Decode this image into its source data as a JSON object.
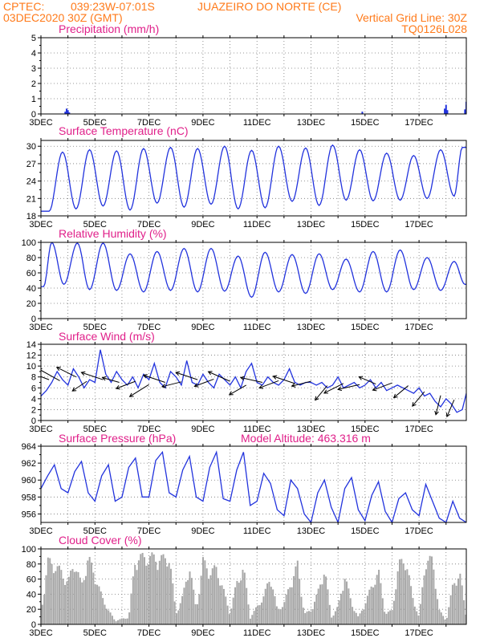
{
  "header": {
    "left_line1": "CPTEC:",
    "coords": "039:23W-07:01S",
    "location": "JUAZEIRO DO NORTE (CE)",
    "left_line2": "03DEC2020 30Z (GMT)",
    "grid_note": "Vertical Grid Line: 30Z",
    "run_code": "TQ0126L028"
  },
  "colors": {
    "header": "#ff7a1a",
    "panel_title": "#e0208a",
    "line": "#2233dd",
    "cloud": "#a8a8a8",
    "arrow": "#000000"
  },
  "x_axis": {
    "tick_labels": [
      "3DEC",
      "5DEC",
      "7DEC",
      "9DEC",
      "11DEC",
      "13DEC",
      "15DEC",
      "17DEC"
    ],
    "tick_days": [
      0,
      2,
      4,
      6,
      8,
      10,
      12,
      14
    ],
    "day_range": [
      0,
      15.75
    ]
  },
  "chart_data": [
    {
      "type": "bar",
      "title": "Precipitation (mm/h)",
      "ylim": [
        0,
        5
      ],
      "yticks": [
        0,
        1,
        2,
        3,
        4,
        5
      ],
      "x_unit": "days since 3DEC 03Z",
      "points": [
        [
          0.9,
          0.15
        ],
        [
          0.95,
          0.35
        ],
        [
          1.0,
          0.25
        ],
        [
          1.05,
          0.1
        ],
        [
          11.9,
          0.15
        ],
        [
          14.95,
          0.35
        ],
        [
          15.0,
          0.6
        ],
        [
          15.05,
          0.25
        ],
        [
          15.7,
          0.3
        ],
        [
          15.75,
          0.8
        ]
      ]
    },
    {
      "type": "line",
      "title": "Surface Temperature (nC)",
      "ylim": [
        18,
        31
      ],
      "yticks": [
        18,
        21,
        24,
        27,
        30
      ],
      "diurnal": {
        "x_min": [
          0.3,
          1.3,
          2.3,
          3.3,
          4.3,
          5.3,
          6.3,
          7.3,
          8.3,
          9.3,
          10.3,
          11.3,
          12.3,
          13.3,
          14.3,
          15.3
        ],
        "y_min": [
          18.8,
          19.2,
          19.7,
          19.0,
          20.2,
          19.5,
          20.0,
          19.2,
          19.4,
          20.5,
          19.8,
          20.7,
          20.6,
          20.7,
          21.0,
          21.4
        ],
        "x_max": [
          0.8,
          1.8,
          2.8,
          3.8,
          4.8,
          5.8,
          6.8,
          7.8,
          8.8,
          9.8,
          10.8,
          11.8,
          12.8,
          13.8,
          14.8,
          15.6
        ],
        "y_max": [
          29.0,
          29.4,
          29.2,
          29.6,
          29.8,
          29.6,
          30.0,
          29.3,
          30.0,
          29.7,
          30.2,
          29.4,
          28.8,
          28.4,
          29.4,
          29.8
        ]
      }
    },
    {
      "type": "line",
      "title": "Relative Humidity (%)",
      "ylim": [
        0,
        100
      ],
      "yticks": [
        0,
        20,
        40,
        60,
        80,
        100
      ],
      "diurnal": {
        "x_min": [
          0.1,
          0.85,
          1.8,
          2.8,
          3.8,
          4.8,
          5.8,
          6.8,
          7.8,
          8.8,
          9.8,
          10.8,
          11.8,
          12.8,
          13.8,
          14.8,
          15.7
        ],
        "y_min": [
          42,
          45,
          38,
          37,
          35,
          37,
          35,
          36,
          28,
          35,
          33,
          38,
          35,
          35,
          38,
          37,
          45
        ],
        "x_max": [
          0.4,
          1.35,
          2.3,
          3.3,
          4.3,
          5.3,
          6.3,
          7.3,
          8.3,
          9.3,
          10.3,
          11.3,
          12.3,
          13.3,
          14.3,
          15.3
        ],
        "y_max": [
          100,
          99,
          99,
          85,
          88,
          92,
          92,
          82,
          87,
          84,
          85,
          78,
          88,
          90,
          80,
          75
        ]
      }
    },
    {
      "type": "line",
      "title": "Surface Wind (m/s)",
      "ylim": [
        0,
        14
      ],
      "yticks": [
        0,
        2,
        4,
        6,
        8,
        10,
        12,
        14
      ],
      "series": [
        {
          "x": [
            0,
            0.2,
            0.4,
            0.6,
            0.8,
            1.0,
            1.2,
            1.4,
            1.6,
            1.8,
            2.0,
            2.2,
            2.4,
            2.6,
            2.8,
            3.0,
            3.2,
            3.4,
            3.6,
            3.8,
            4.0,
            4.2,
            4.4,
            4.6,
            4.8,
            5.0,
            5.2,
            5.4,
            5.6,
            5.8,
            6.0,
            6.2,
            6.4,
            6.6,
            6.8,
            7.0,
            7.2,
            7.4,
            7.6,
            7.8,
            8.0,
            8.2,
            8.4,
            8.6,
            8.8,
            9.0,
            9.2,
            9.4,
            9.6,
            9.8,
            10.0,
            10.2,
            10.4,
            10.6,
            10.8,
            11.0,
            11.2,
            11.4,
            11.6,
            11.8,
            12.0,
            12.2,
            12.4,
            12.6,
            12.8,
            13.0,
            13.2,
            13.4,
            13.6,
            13.8,
            14.0,
            14.2,
            14.4,
            14.6,
            14.8,
            15.0,
            15.2,
            15.4,
            15.6,
            15.75
          ],
          "y": [
            4.5,
            5.5,
            7.0,
            9.0,
            7.5,
            6.5,
            9.5,
            8.0,
            6.0,
            7.5,
            7.0,
            13.0,
            8.5,
            7.0,
            9.0,
            7.5,
            6.5,
            8.0,
            6.0,
            8.5,
            7.5,
            10.5,
            7.0,
            6.0,
            9.0,
            8.0,
            6.5,
            11.0,
            7.0,
            6.5,
            8.5,
            7.0,
            6.0,
            8.5,
            7.5,
            6.5,
            8.0,
            6.0,
            9.0,
            10.5,
            7.0,
            6.5,
            8.0,
            7.0,
            6.5,
            7.5,
            9.5,
            7.0,
            6.5,
            7.0,
            7.0,
            6.5,
            7.0,
            6.0,
            6.5,
            8.0,
            6.0,
            6.5,
            7.0,
            6.0,
            6.5,
            7.5,
            6.0,
            7.0,
            5.5,
            6.0,
            6.5,
            6.0,
            5.5,
            5.0,
            6.0,
            4.5,
            5.0,
            3.5,
            2.5,
            4.0,
            3.0,
            1.5,
            2.0,
            5.0
          ]
        }
      ],
      "barbs": [
        [
          0.3,
          7.5,
          -0.8,
          0.3
        ],
        [
          0.7,
          7.3,
          -0.9,
          0.5
        ],
        [
          1.3,
          8.0,
          -0.8,
          0.4
        ],
        [
          1.7,
          7.2,
          -0.6,
          -0.4
        ],
        [
          2.3,
          7.5,
          -0.9,
          0.3
        ],
        [
          2.9,
          7.0,
          -0.7,
          0.2
        ],
        [
          3.5,
          7.2,
          -0.8,
          -0.3
        ],
        [
          4.0,
          6.6,
          -0.8,
          -0.5
        ],
        [
          4.6,
          7.0,
          -0.9,
          0.3
        ],
        [
          5.2,
          7.1,
          -0.8,
          -0.2
        ],
        [
          5.8,
          7.5,
          -0.9,
          0.3
        ],
        [
          6.4,
          7.6,
          -0.8,
          -0.3
        ],
        [
          7.0,
          7.2,
          -0.9,
          0.4
        ],
        [
          7.6,
          6.5,
          -0.7,
          -0.4
        ],
        [
          8.2,
          7.0,
          -0.9,
          0.2
        ],
        [
          8.8,
          7.3,
          -0.8,
          -0.3
        ],
        [
          9.4,
          6.8,
          -0.9,
          0.3
        ],
        [
          10.0,
          7.2,
          -0.8,
          -0.2
        ],
        [
          10.6,
          6.4,
          -0.5,
          -0.6
        ],
        [
          11.2,
          6.8,
          -0.8,
          -0.4
        ],
        [
          11.8,
          6.6,
          -0.9,
          -0.2
        ],
        [
          12.4,
          6.7,
          -0.7,
          0.3
        ],
        [
          13.0,
          6.9,
          -0.8,
          -0.3
        ],
        [
          13.6,
          6.4,
          -0.6,
          -0.5
        ],
        [
          14.2,
          5.3,
          -0.5,
          -0.6
        ],
        [
          14.8,
          4.6,
          -0.2,
          -0.8
        ],
        [
          15.3,
          3.8,
          -0.3,
          -0.7
        ]
      ]
    },
    {
      "type": "line",
      "title": "Surface Pressure (hPa)",
      "annotation": "Model Altitude: 463.316 m",
      "ylim": [
        955,
        964
      ],
      "yticks": [
        956,
        958,
        960,
        962,
        964
      ],
      "series": [
        {
          "x": [
            0,
            0.25,
            0.5,
            0.75,
            1.0,
            1.25,
            1.5,
            1.75,
            2.0,
            2.25,
            2.5,
            2.75,
            3.0,
            3.25,
            3.5,
            3.75,
            4.0,
            4.25,
            4.5,
            4.75,
            5.0,
            5.25,
            5.5,
            5.75,
            6.0,
            6.25,
            6.5,
            6.75,
            7.0,
            7.25,
            7.5,
            7.75,
            8.0,
            8.25,
            8.5,
            8.75,
            9.0,
            9.25,
            9.5,
            9.75,
            10.0,
            10.25,
            10.5,
            10.75,
            11.0,
            11.25,
            11.5,
            11.75,
            12.0,
            12.25,
            12.5,
            12.75,
            13.0,
            13.25,
            13.5,
            13.75,
            14.0,
            14.25,
            14.5,
            14.75,
            15.0,
            15.25,
            15.5,
            15.75
          ],
          "y": [
            959.0,
            960.5,
            961.8,
            959.0,
            958.5,
            961.0,
            962.2,
            958.5,
            957.5,
            960.5,
            961.8,
            957.5,
            958.0,
            961.5,
            962.6,
            958.0,
            958.0,
            962.3,
            963.3,
            958.5,
            958.0,
            961.2,
            962.8,
            958.0,
            957.5,
            961.5,
            963.3,
            957.8,
            957.5,
            961.2,
            963.3,
            957.0,
            957.5,
            960.8,
            959.6,
            956.5,
            955.8,
            960.0,
            959.0,
            956.0,
            955.0,
            958.5,
            960.0,
            956.8,
            955.0,
            959.0,
            960.3,
            956.5,
            955.2,
            958.2,
            959.8,
            956.3,
            955.0,
            957.8,
            958.5,
            956.5,
            955.8,
            959.5,
            957.5,
            955.5,
            955.0,
            957.5,
            955.5,
            955.0
          ]
        }
      ]
    },
    {
      "type": "area",
      "title": "Cloud Cover (%)",
      "ylim": [
        0,
        100
      ],
      "yticks": [
        0,
        20,
        40,
        60,
        80,
        100
      ],
      "series": [
        {
          "x": [
            0,
            0.25,
            0.5,
            0.75,
            1.0,
            1.25,
            1.5,
            1.75,
            2.0,
            2.25,
            2.5,
            2.75,
            3.0,
            3.25,
            3.5,
            3.75,
            4.0,
            4.25,
            4.5,
            4.75,
            5.0,
            5.25,
            5.5,
            5.75,
            6.0,
            6.25,
            6.5,
            6.75,
            7.0,
            7.25,
            7.5,
            7.75,
            8.0,
            8.25,
            8.5,
            8.75,
            9.0,
            9.25,
            9.5,
            9.75,
            10.0,
            10.25,
            10.5,
            10.75,
            11.0,
            11.25,
            11.5,
            11.75,
            12.0,
            12.25,
            12.5,
            12.75,
            13.0,
            13.25,
            13.5,
            13.75,
            14.0,
            14.25,
            14.5,
            14.75,
            15.0,
            15.25,
            15.5,
            15.75
          ],
          "y": [
            15,
            90,
            85,
            75,
            60,
            90,
            55,
            95,
            70,
            40,
            20,
            5,
            8,
            10,
            96,
            95,
            96,
            95,
            93,
            97,
            15,
            40,
            85,
            20,
            90,
            75,
            80,
            50,
            15,
            60,
            80,
            10,
            25,
            40,
            70,
            20,
            30,
            60,
            85,
            15,
            20,
            45,
            80,
            10,
            25,
            70,
            30,
            10,
            30,
            55,
            75,
            15,
            20,
            85,
            95,
            40,
            10,
            95,
            90,
            20,
            5,
            55,
            75,
            10
          ]
        }
      ]
    }
  ]
}
